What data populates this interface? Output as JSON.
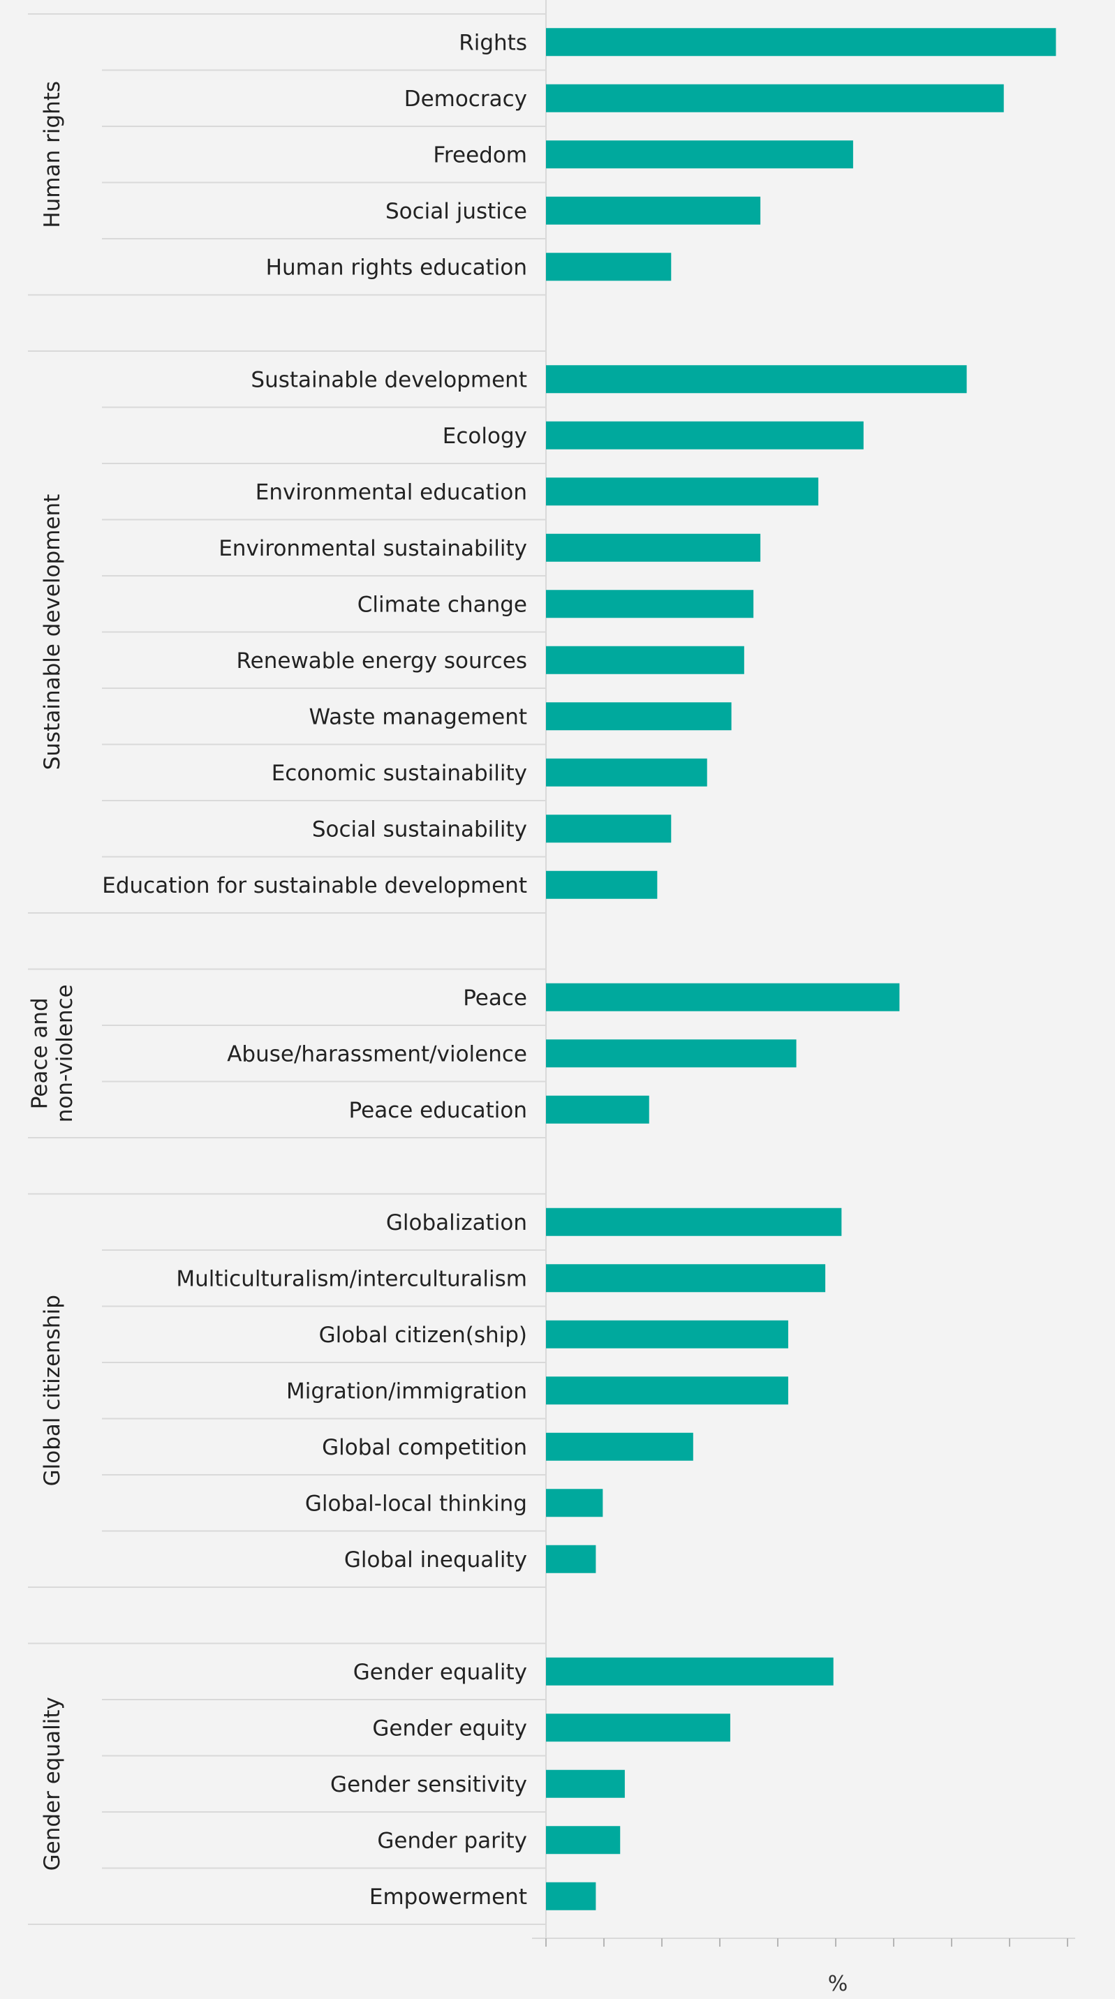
{
  "chart_data": {
    "type": "bar",
    "orientation": "horizontal",
    "title": "",
    "xlabel": "%",
    "ylabel": "",
    "bar_color": "#00a99d",
    "background": "#f3f3f3",
    "grid": false,
    "groups": [
      {
        "name": "Human rights",
        "categories": [
          "Rights",
          "Democracy",
          "Freedom",
          "Social justice",
          "Human rights education"
        ],
        "values": [
          44,
          39.5,
          26.5,
          18.5,
          10.8
        ]
      },
      {
        "name": "Sustainable development",
        "categories": [
          "Sustainable development",
          "Ecology",
          "Environmental education",
          "Environmental sustainability",
          "Climate change",
          "Renewable energy sources",
          "Waste management",
          "Economic sustainability",
          "Social sustainability",
          "Education for sustainable development"
        ],
        "values": [
          36.3,
          27.4,
          23.5,
          18.5,
          17.9,
          17.1,
          16,
          13.9,
          10.8,
          9.6
        ]
      },
      {
        "name": "Peace and non-violence",
        "categories": [
          "Peace",
          "Abuse/harassment/violence",
          "Peace education"
        ],
        "values": [
          30.5,
          21.6,
          8.9
        ]
      },
      {
        "name": "Global citizenship",
        "categories": [
          "Globalization",
          "Multiculturalism/interculturalism",
          "Global citizen(ship)",
          "Migration/immigration",
          "Global competition",
          "Global-local thinking",
          "Global inequality"
        ],
        "values": [
          25.5,
          24.1,
          20.9,
          20.9,
          12.7,
          4.9,
          4.3
        ]
      },
      {
        "name": "Gender equality",
        "categories": [
          "Gender equality",
          "Gender equity",
          "Gender sensitivity",
          "Gender parity",
          "Empowerment"
        ],
        "values": [
          24.8,
          15.9,
          6.8,
          6.4,
          4.3
        ]
      }
    ]
  }
}
